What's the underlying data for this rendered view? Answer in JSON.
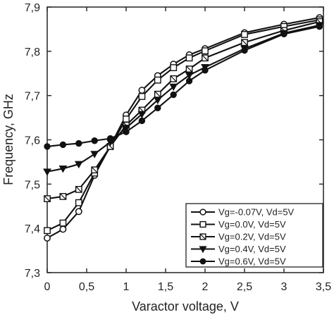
{
  "chart_data": {
    "type": "line",
    "xlabel": "Varactor voltage, V",
    "ylabel": "Frequency, GHz",
    "xlim": [
      0,
      3.5
    ],
    "ylim": [
      7.3,
      7.9
    ],
    "xticks": [
      0,
      0.5,
      1,
      1.5,
      2,
      2.5,
      3,
      3.5
    ],
    "yticks": [
      7.3,
      7.4,
      7.5,
      7.6,
      7.7,
      7.8,
      7.9
    ],
    "xtick_labels": [
      "0",
      "0,5",
      "1",
      "1,5",
      "2",
      "2,5",
      "3",
      "3,5"
    ],
    "ytick_labels": [
      "7,3",
      "7,4",
      "7,5",
      "7,6",
      "7,7",
      "7,8",
      "7,9"
    ],
    "grid": false,
    "legend_position": "bottom-right",
    "series": [
      {
        "name": "Vg=-0.07V, Vd=5V",
        "marker": "open-circle",
        "x": [
          0,
          0.2,
          0.4,
          0.6,
          0.8,
          1.0,
          1.2,
          1.4,
          1.6,
          1.8,
          2.0,
          2.5,
          3.0,
          3.45
        ],
        "y": [
          7.378,
          7.398,
          7.438,
          7.52,
          7.586,
          7.656,
          7.712,
          7.745,
          7.771,
          7.792,
          7.806,
          7.842,
          7.861,
          7.876
        ]
      },
      {
        "name": "Vg=0.0V, Vd=5V",
        "marker": "open-square",
        "x": [
          0,
          0.2,
          0.4,
          0.6,
          0.8,
          1.0,
          1.2,
          1.4,
          1.6,
          1.8,
          2.0,
          2.5,
          3.0,
          3.45
        ],
        "y": [
          7.395,
          7.412,
          7.458,
          7.525,
          7.585,
          7.647,
          7.698,
          7.735,
          7.763,
          7.785,
          7.801,
          7.838,
          7.856,
          7.871
        ]
      },
      {
        "name": "Vg=0.2V, Vd=5V",
        "marker": "slashed-square",
        "x": [
          0,
          0.2,
          0.4,
          0.6,
          0.8,
          1.0,
          1.2,
          1.4,
          1.6,
          1.8,
          2.0,
          2.5,
          3.0,
          3.45
        ],
        "y": [
          7.467,
          7.472,
          7.488,
          7.532,
          7.585,
          7.633,
          7.667,
          7.703,
          7.738,
          7.76,
          7.785,
          7.82,
          7.847,
          7.867
        ]
      },
      {
        "name": "Vg=0.4V, Vd=5V",
        "marker": "filled-triangle-down",
        "x": [
          0,
          0.2,
          0.4,
          0.6,
          0.8,
          1.0,
          1.2,
          1.4,
          1.6,
          1.8,
          2.0,
          2.5,
          3.0,
          3.45
        ],
        "y": [
          7.528,
          7.535,
          7.545,
          7.568,
          7.595,
          7.627,
          7.658,
          7.69,
          7.72,
          7.746,
          7.764,
          7.806,
          7.841,
          7.859
        ]
      },
      {
        "name": "Vg=0.6V, Vd=5V",
        "marker": "filled-circle",
        "x": [
          0,
          0.2,
          0.4,
          0.6,
          0.8,
          1.0,
          1.2,
          1.4,
          1.6,
          1.8,
          2.0,
          2.5,
          3.0,
          3.45
        ],
        "y": [
          7.585,
          7.589,
          7.592,
          7.598,
          7.603,
          7.618,
          7.643,
          7.672,
          7.702,
          7.733,
          7.757,
          7.802,
          7.839,
          7.856
        ]
      }
    ]
  }
}
